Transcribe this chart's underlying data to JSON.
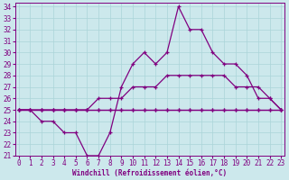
{
  "xlabel": "Windchill (Refroidissement éolien,°C)",
  "background_color": "#cce8ec",
  "grid_color": "#aad4d8",
  "line_color": "#800080",
  "x_values": [
    0,
    1,
    2,
    3,
    4,
    5,
    6,
    7,
    8,
    9,
    10,
    11,
    12,
    13,
    14,
    15,
    16,
    17,
    18,
    19,
    20,
    21,
    22,
    23
  ],
  "line1": [
    25,
    25,
    25,
    25,
    25,
    25,
    25,
    25,
    25,
    25,
    25,
    25,
    25,
    25,
    25,
    25,
    25,
    25,
    25,
    25,
    25,
    25,
    25,
    25
  ],
  "line2": [
    25,
    25,
    25,
    25,
    25,
    25,
    25,
    25,
    25,
    25,
    25,
    25,
    25,
    25,
    25,
    25,
    25,
    25,
    25,
    25,
    25,
    25,
    25,
    25
  ],
  "line3": [
    25,
    25,
    25,
    25,
    25,
    25,
    25,
    26,
    26,
    26,
    27,
    27,
    27,
    28,
    28,
    28,
    28,
    28,
    28,
    27,
    27,
    27,
    26,
    25
  ],
  "line4": [
    25,
    25,
    24,
    24,
    23,
    23,
    21,
    21,
    23,
    27,
    29,
    30,
    29,
    30,
    34,
    32,
    32,
    30,
    29,
    29,
    28,
    26,
    26,
    25
  ],
  "ylim_min": 21,
  "ylim_max": 34,
  "xlim_min": 0,
  "xlim_max": 23,
  "yticks": [
    21,
    22,
    23,
    24,
    25,
    26,
    27,
    28,
    29,
    30,
    31,
    32,
    33,
    34
  ],
  "xticks": [
    0,
    1,
    2,
    3,
    4,
    5,
    6,
    7,
    8,
    9,
    10,
    11,
    12,
    13,
    14,
    15,
    16,
    17,
    18,
    19,
    20,
    21,
    22,
    23
  ],
  "tick_fontsize": 5.5,
  "xlabel_fontsize": 5.5,
  "linewidth": 0.9,
  "markersize": 3.5
}
